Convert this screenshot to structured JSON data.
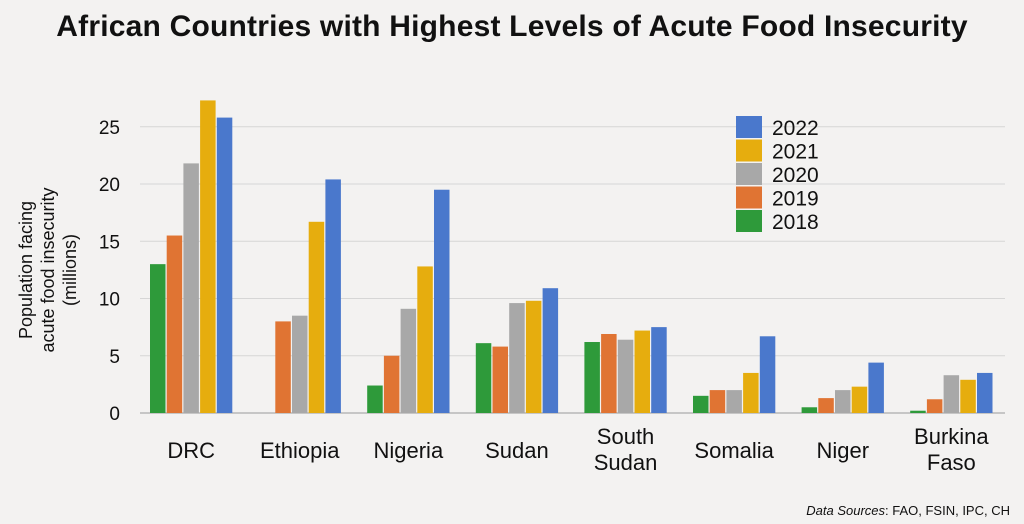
{
  "sources": {
    "label": "Data Sources",
    "text": ": FAO, FSIN, IPC, CH"
  },
  "chart_data": {
    "type": "bar",
    "title": "African Countries with Highest Levels of Acute Food Insecurity",
    "ylabel_lines": [
      "Population facing",
      "acute food insecurity",
      "(millions)"
    ],
    "xlabel": "",
    "ylim": [
      0,
      27
    ],
    "yticks": [
      0,
      5,
      10,
      15,
      20,
      25
    ],
    "grid": true,
    "legend_position": "top-right",
    "categories": [
      [
        "DRC"
      ],
      [
        "Ethiopia"
      ],
      [
        "Nigeria"
      ],
      [
        "Sudan"
      ],
      [
        "South",
        "Sudan"
      ],
      [
        "Somalia"
      ],
      [
        "Niger"
      ],
      [
        "Burkina",
        "Faso"
      ]
    ],
    "series": [
      {
        "name": "2018",
        "color": "#2e9a3a",
        "values": [
          13.0,
          null,
          2.4,
          6.1,
          6.2,
          1.5,
          0.5,
          0.2
        ]
      },
      {
        "name": "2019",
        "color": "#e07433",
        "values": [
          15.5,
          8.0,
          5.0,
          5.8,
          6.9,
          2.0,
          1.3,
          1.2
        ]
      },
      {
        "name": "2020",
        "color": "#a8a8a8",
        "values": [
          21.8,
          8.5,
          9.1,
          9.6,
          6.4,
          2.0,
          2.0,
          3.3
        ]
      },
      {
        "name": "2021",
        "color": "#e6ad0e",
        "values": [
          27.3,
          16.7,
          12.8,
          9.8,
          7.2,
          3.5,
          2.3,
          2.9
        ]
      },
      {
        "name": "2022",
        "color": "#4a78cc",
        "values": [
          25.8,
          20.4,
          19.5,
          10.9,
          7.5,
          6.7,
          4.4,
          3.5
        ]
      }
    ],
    "legend_order": [
      "2022",
      "2021",
      "2020",
      "2019",
      "2018"
    ]
  }
}
